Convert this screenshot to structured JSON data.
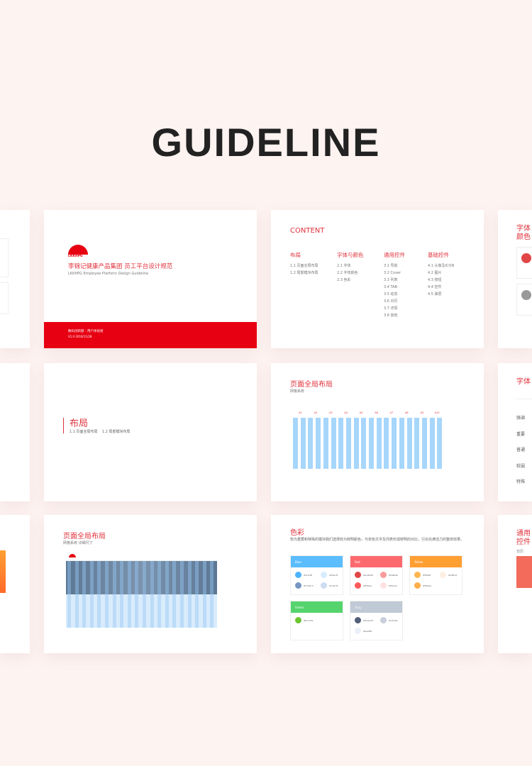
{
  "title": "GUIDELINE",
  "cover": {
    "logo_text": "LKKHPG",
    "title_cn": "李锦记健康产品集团 员工平台设计规范",
    "title_en": "LKKHPG Employee Platform Design Guideline",
    "dept": "数码创新部 - 用户体验组",
    "version": "V1.0   2016/11/28",
    "brand_color": "#e60012"
  },
  "content": {
    "heading": "CONTENT",
    "columns": [
      {
        "title": "布局",
        "items": [
          "1.1 页面全局布局",
          "1.2 局部模块布局"
        ]
      },
      {
        "title": "字体与颜色",
        "items": [
          "2.1 字体",
          "2.2 字体颜色",
          "2.3 色彩"
        ]
      },
      {
        "title": "通用控件",
        "items": [
          "3.1 导航",
          "3.2 Cover",
          "3.3 列表",
          "3.4 TAB",
          "3.5 动态",
          "3.6 日历",
          "3.7 详情",
          "3.8 其他"
        ]
      },
      {
        "title": "基础控件",
        "items": [
          "4.1 头像及ICON",
          "4.2 图片",
          "4.3 按钮",
          "4.4 控件",
          "4.5 弹层"
        ]
      }
    ]
  },
  "section": {
    "title": "布局",
    "items": "1.1 页面全局布局    1.2 局部模块布局"
  },
  "grid": {
    "title": "页面全局布局",
    "subtitle": "网格系统",
    "labels": [
      "A1",
      "A2",
      "A3",
      "A4",
      "A5",
      "A6",
      "A7",
      "A8",
      "A9",
      "A10"
    ],
    "column_color": "#a7d6fb"
  },
  "grid_detail": {
    "title": "页面全局布局",
    "subtitle": "网格系统 详细尺寸"
  },
  "colors": {
    "title": "色彩",
    "desc": "较为重要和特殊的模块我们选择较为鲜明颜色，与单色文字及列表形成鲜明的对比，引出充满活力的整体效果。",
    "groups": [
      {
        "name": "Blue",
        "color": "#5bbdfd",
        "swatches": [
          "#4cb4ff",
          "#d6ecff",
          "#7795c3",
          "#cddcf2"
        ]
      },
      {
        "name": "Red",
        "color": "#fd6a6e",
        "swatches": [
          "#e14646",
          "#f99b9b",
          "#ff5a5a",
          "#ffe1e1"
        ]
      },
      {
        "name": "Yellow",
        "color": "#ff9f32",
        "swatches": [
          "#ffb64f",
          "#fdf0e3",
          "#ffae4a"
        ]
      },
      {
        "name": "Green",
        "color": "#55d46d",
        "swatches": [
          "#6cc532"
        ]
      },
      {
        "name": "Gray",
        "color": "#c0c9d6",
        "swatches": [
          "#515e78",
          "#c8cfdb",
          "#eaeff8"
        ]
      }
    ]
  },
  "right": {
    "font_color_title": "字体颜色",
    "font_title": "字体",
    "font_levels": [
      "强调",
      "重要",
      "普通",
      "较弱",
      "特殊"
    ],
    "controls_title": "通用控件",
    "controls_sub": "日历"
  }
}
